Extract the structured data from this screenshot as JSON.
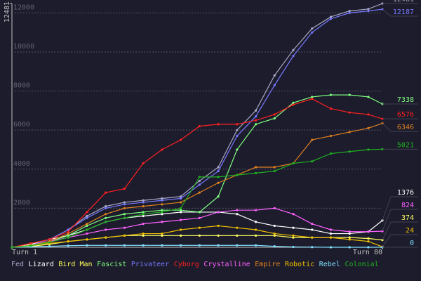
{
  "chart_data": {
    "type": "line",
    "x": [
      1,
      5,
      9,
      13,
      17,
      21,
      25,
      29,
      33,
      37,
      41,
      45,
      49,
      53,
      57,
      61,
      65,
      69,
      73,
      77,
      80
    ],
    "xlim": [
      1,
      80
    ],
    "xticks": [
      {
        "value": 1,
        "label": "Turn 1"
      },
      {
        "value": 80,
        "label": "Turn 80"
      }
    ],
    "ylim": [
      0,
      12481
    ],
    "yticks": [
      2000,
      4000,
      6000,
      8000,
      10000,
      12000,
      12481
    ],
    "grid": true,
    "series": [
      {
        "name": "Fed",
        "color": "#a8a8c8",
        "values": [
          0,
          100,
          400,
          900,
          1600,
          2100,
          2300,
          2400,
          2500,
          2600,
          3400,
          4100,
          6000,
          7000,
          8800,
          10100,
          11200,
          11800,
          12100,
          12200,
          12481
        ]
      },
      {
        "name": "Lizard",
        "color": "#ffffff",
        "values": [
          0,
          150,
          400,
          600,
          900,
          1300,
          1500,
          1600,
          1700,
          1800,
          1800,
          1800,
          1700,
          1300,
          1100,
          1000,
          900,
          700,
          700,
          800,
          1376
        ]
      },
      {
        "name": "Bird Man",
        "color": "#ffff60",
        "values": [
          0,
          50,
          150,
          300,
          400,
          500,
          600,
          600,
          600,
          600,
          600,
          600,
          600,
          600,
          600,
          500,
          500,
          500,
          500,
          450,
          374
        ]
      },
      {
        "name": "Fascist",
        "color": "#80ff80",
        "values": [
          0,
          100,
          300,
          600,
          1100,
          1500,
          1700,
          1800,
          1900,
          1900,
          1800,
          2600,
          5000,
          6300,
          6600,
          7400,
          7700,
          7800,
          7800,
          7700,
          7338
        ]
      },
      {
        "name": "Privateer",
        "color": "#7878ff",
        "values": [
          0,
          100,
          400,
          900,
          1500,
          2000,
          2200,
          2300,
          2400,
          2500,
          3200,
          3900,
          5700,
          6700,
          8300,
          9800,
          11000,
          11700,
          12000,
          12100,
          12187
        ]
      },
      {
        "name": "Cyborg",
        "color": "#ff2020",
        "values": [
          0,
          200,
          400,
          800,
          1800,
          2800,
          3000,
          4300,
          5000,
          5500,
          6200,
          6300,
          6300,
          6500,
          6800,
          7300,
          7600,
          7100,
          6900,
          6800,
          6576
        ]
      },
      {
        "name": "Crystalline",
        "color": "#ff60ff",
        "values": [
          0,
          100,
          300,
          500,
          700,
          900,
          1000,
          1200,
          1300,
          1400,
          1500,
          1800,
          1900,
          1900,
          2000,
          1700,
          1200,
          900,
          800,
          800,
          824
        ]
      },
      {
        "name": "Empire",
        "color": "#e08020",
        "values": [
          0,
          100,
          300,
          700,
          1200,
          1700,
          2000,
          2100,
          2200,
          2300,
          2800,
          3300,
          3700,
          4100,
          4100,
          4300,
          5500,
          5700,
          5900,
          6100,
          6346
        ]
      },
      {
        "name": "Robotic",
        "color": "#f0c000",
        "values": [
          0,
          100,
          200,
          300,
          400,
          500,
          600,
          700,
          700,
          900,
          1000,
          1100,
          1000,
          900,
          700,
          600,
          500,
          500,
          400,
          300,
          24
        ]
      },
      {
        "name": "Rebel",
        "color": "#80e0ff",
        "values": [
          0,
          30,
          50,
          80,
          100,
          100,
          100,
          100,
          100,
          100,
          100,
          100,
          100,
          100,
          50,
          20,
          10,
          0,
          0,
          0,
          0
        ]
      },
      {
        "name": "Colonial",
        "color": "#20b020",
        "values": [
          0,
          80,
          250,
          500,
          900,
          1300,
          1500,
          1700,
          1800,
          2000,
          3600,
          3600,
          3700,
          3800,
          3900,
          4300,
          4400,
          4800,
          4900,
          5000,
          5021
        ]
      }
    ]
  }
}
